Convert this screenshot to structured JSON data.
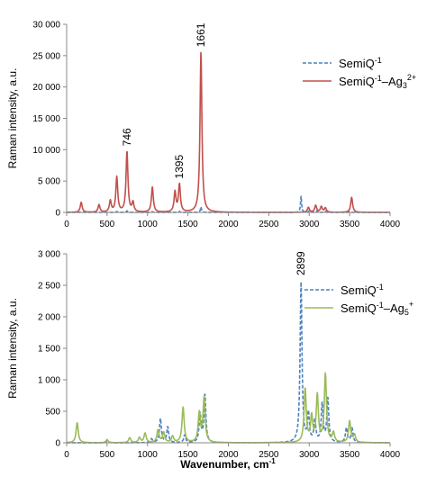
{
  "chart_data": [
    {
      "type": "line",
      "ylabel": "Raman intensity, a.u.",
      "xlabel": "",
      "xlim": [
        0,
        4000
      ],
      "ylim": [
        0,
        30000
      ],
      "x_ticks": [
        "0",
        "500",
        "1000",
        "1500",
        "2000",
        "2500",
        "3000",
        "3500",
        "4000"
      ],
      "y_ticks": [
        "0",
        "5 000",
        "10 000",
        "15 000",
        "20 000",
        "25 000",
        "30 000"
      ],
      "grid": false,
      "legend_position": "top-right",
      "legend": [
        {
          "name_main": "SemiQ",
          "name_sup": "-1",
          "name_mid": "",
          "name_sub": "",
          "name_sup2": "",
          "style": "dashed",
          "color": "#4f81bd"
        },
        {
          "name_main": "SemiQ",
          "name_sup": "-1",
          "name_mid": "–Ag",
          "name_sub": "3",
          "name_sup2": "2+",
          "style": "solid",
          "color": "#c0504d"
        }
      ],
      "peak_labels": [
        {
          "text": "746",
          "x": 746,
          "y": 10000
        },
        {
          "text": "1395",
          "x": 1395,
          "y": 4800
        },
        {
          "text": "1661",
          "x": 1661,
          "y": 25800
        }
      ],
      "series": [
        {
          "color": "#4f81bd",
          "dashed": true,
          "width": 8,
          "peaks": [
            [
              180,
              80
            ],
            [
              620,
              150
            ],
            [
              746,
              250
            ],
            [
              1060,
              120
            ],
            [
              1395,
              150
            ],
            [
              1661,
              900
            ],
            [
              2899,
              2600
            ],
            [
              3000,
              250
            ],
            [
              3100,
              300
            ],
            [
              3200,
              200
            ],
            [
              3500,
              150
            ]
          ]
        },
        {
          "color": "#c0504d",
          "dashed": false,
          "width": 14,
          "peaks": [
            [
              180,
              1600
            ],
            [
              400,
              1200
            ],
            [
              540,
              1800
            ],
            [
              620,
              5600
            ],
            [
              746,
              9700
            ],
            [
              820,
              1500
            ],
            [
              1060,
              4000
            ],
            [
              1340,
              3200
            ],
            [
              1395,
              4400
            ],
            [
              1661,
              25600
            ],
            [
              2990,
              800
            ],
            [
              3080,
              1100
            ],
            [
              3150,
              900
            ],
            [
              3200,
              700
            ],
            [
              3525,
              2400
            ]
          ]
        }
      ]
    },
    {
      "type": "line",
      "ylabel": "Raman intensity, a.u.",
      "xlabel": "Wavenumber, cm",
      "xlabel_sup": "-1",
      "xlim": [
        0,
        4000
      ],
      "ylim": [
        0,
        3000
      ],
      "x_ticks": [
        "0",
        "500",
        "1000",
        "1500",
        "2000",
        "2500",
        "3000",
        "3500",
        "4000"
      ],
      "y_ticks": [
        "0",
        "500",
        "1 000",
        "1 500",
        "2 000",
        "2 500",
        "3 000"
      ],
      "grid": false,
      "legend_position": "top-right",
      "legend": [
        {
          "name_main": "SemiQ",
          "name_sup": "-1",
          "name_mid": "",
          "name_sub": "",
          "name_sup2": "",
          "style": "dashed",
          "color": "#4f81bd"
        },
        {
          "name_main": "SemiQ",
          "name_sup": "-1",
          "name_mid": "–Ag",
          "name_sub": "5",
          "name_sup2": "+",
          "style": "solid",
          "color": "#9bbb59"
        }
      ],
      "peak_labels": [
        {
          "text": "2899",
          "x": 2899,
          "y": 2600
        }
      ],
      "series": [
        {
          "color": "#4f81bd",
          "dashed": true,
          "width": 14,
          "peaks": [
            [
              500,
              30
            ],
            [
              1050,
              60
            ],
            [
              1160,
              380
            ],
            [
              1250,
              250
            ],
            [
              1460,
              120
            ],
            [
              1650,
              450
            ],
            [
              1710,
              760
            ],
            [
              2899,
              2550
            ],
            [
              2990,
              450
            ],
            [
              3070,
              350
            ],
            [
              3160,
              600
            ],
            [
              3230,
              700
            ],
            [
              3460,
              230
            ],
            [
              3530,
              230
            ]
          ]
        },
        {
          "color": "#9bbb59",
          "dashed": false,
          "width": 16,
          "peaks": [
            [
              130,
              320
            ],
            [
              500,
              50
            ],
            [
              780,
              80
            ],
            [
              900,
              80
            ],
            [
              970,
              150
            ],
            [
              1130,
              200
            ],
            [
              1200,
              160
            ],
            [
              1310,
              100
            ],
            [
              1440,
              560
            ],
            [
              1640,
              460
            ],
            [
              1700,
              700
            ],
            [
              2950,
              850
            ],
            [
              3030,
              400
            ],
            [
              3100,
              740
            ],
            [
              3200,
              1080
            ],
            [
              3300,
              150
            ],
            [
              3500,
              340
            ],
            [
              3560,
              120
            ]
          ]
        }
      ]
    }
  ]
}
